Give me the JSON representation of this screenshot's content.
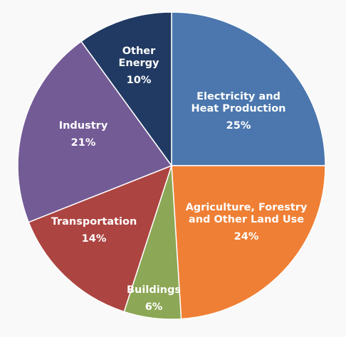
{
  "chart_data": {
    "type": "pie",
    "title": "",
    "slices": [
      {
        "name": "Electricity and Heat Production",
        "label_lines": [
          "Electricity and",
          "Heat Production"
        ],
        "value": 25,
        "value_label": "25%",
        "color": "#4b77ae"
      },
      {
        "name": "Agriculture, Forestry and Other Land Use",
        "label_lines": [
          "Agriculture, Forestry",
          "and Other Land Use"
        ],
        "value": 24,
        "value_label": "24%",
        "color": "#ef7f35"
      },
      {
        "name": "Buildings",
        "label_lines": [
          "Buildings"
        ],
        "value": 6,
        "value_label": "6%",
        "color": "#8ca755"
      },
      {
        "name": "Transportation",
        "label_lines": [
          "Transportation"
        ],
        "value": 14,
        "value_label": "14%",
        "color": "#ac4441"
      },
      {
        "name": "Industry",
        "label_lines": [
          "Industry"
        ],
        "value": 21,
        "value_label": "21%",
        "color": "#735b95"
      },
      {
        "name": "Other Energy",
        "label_lines": [
          "Other",
          "Energy"
        ],
        "value": 10,
        "value_label": "10%",
        "color": "#213a63"
      }
    ],
    "start_angle": "12 o'clock",
    "direction": "clockwise",
    "legend": "none (labels inside slices)"
  }
}
